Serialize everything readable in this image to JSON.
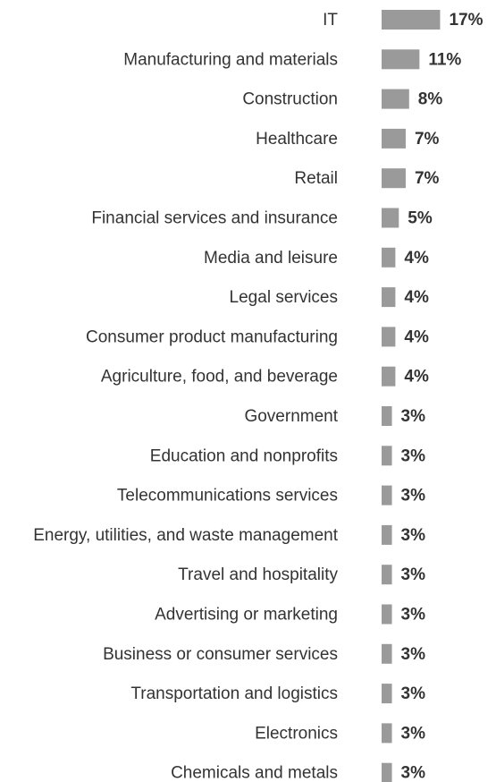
{
  "chart_data": {
    "type": "barh",
    "categories": [
      "IT",
      "Manufacturing and materials",
      "Construction",
      "Healthcare",
      "Retail",
      "Financial services and insurance",
      "Media and leisure",
      "Legal services",
      "Consumer product manufacturing",
      "Agriculture, food, and beverage",
      "Government",
      "Education and nonprofits",
      "Telecommunications services",
      "Energy, utilities, and waste management",
      "Travel and hospitality",
      "Advertising or marketing",
      "Business or consumer services",
      "Transportation and logistics",
      "Electronics",
      "Chemicals and metals"
    ],
    "values": [
      17,
      11,
      8,
      7,
      7,
      5,
      4,
      4,
      4,
      4,
      3,
      3,
      3,
      3,
      3,
      3,
      3,
      3,
      3,
      3
    ],
    "value_labels": [
      "17%",
      "11%",
      "8%",
      "7%",
      "7%",
      "5%",
      "4%",
      "4%",
      "4%",
      "4%",
      "3%",
      "3%",
      "3%",
      "3%",
      "3%",
      "3%",
      "3%",
      "3%",
      "3%",
      "3%"
    ],
    "color": "#9a9a9a"
  }
}
